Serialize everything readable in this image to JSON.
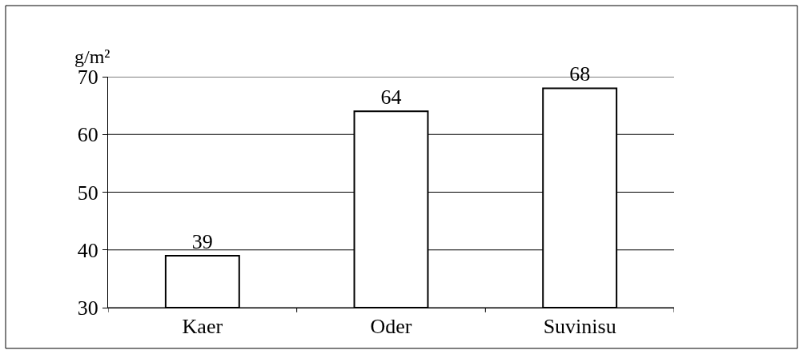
{
  "chart_data": {
    "type": "bar",
    "ylabel": "g/m²",
    "categories": [
      "Kaer",
      "Oder",
      "Suvinisu"
    ],
    "values": [
      39,
      64,
      68
    ],
    "color": "#ffffff",
    "ylim": [
      30,
      70
    ],
    "yticks": [
      30,
      40,
      50,
      60,
      70
    ],
    "grid": "y",
    "data_labels": true
  }
}
